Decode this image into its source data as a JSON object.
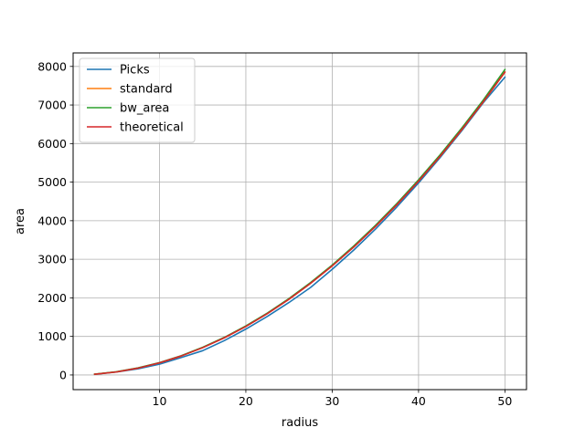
{
  "chart_data": {
    "type": "line",
    "title": "",
    "xlabel": "radius",
    "ylabel": "area",
    "xlim": [
      0,
      52.5
    ],
    "ylim": [
      -380,
      8350
    ],
    "xticks": [
      10,
      20,
      30,
      40,
      50
    ],
    "yticks": [
      0,
      1000,
      2000,
      3000,
      4000,
      5000,
      6000,
      7000,
      8000
    ],
    "grid": true,
    "legend_position": "top-left",
    "x": [
      2.5,
      5,
      7.5,
      10,
      12.5,
      15,
      17.5,
      20,
      22.5,
      25,
      27.5,
      30,
      32.5,
      35,
      37.5,
      40,
      42.5,
      45,
      47.5,
      50
    ],
    "series": [
      {
        "name": "Picks",
        "color": "#1f77b4",
        "values": [
          17,
          77,
          160,
          280,
          450,
          630,
          890,
          1190,
          1520,
          1880,
          2270,
          2740,
          3240,
          3780,
          4360,
          4980,
          5640,
          6330,
          7060,
          7720
        ]
      },
      {
        "name": "standard",
        "color": "#ff7f0e",
        "values": [
          20,
          80,
          178,
          315,
          491,
          710,
          964,
          1260,
          1595,
          1966,
          2378,
          2830,
          3320,
          3850,
          4417,
          5027,
          5672,
          6358,
          7085,
          7850
        ]
      },
      {
        "name": "bw_area",
        "color": "#2ca02c",
        "values": [
          22,
          84,
          183,
          321,
          498,
          718,
          974,
          1271,
          1607,
          1982,
          2396,
          2850,
          3344,
          3877,
          4449,
          5060,
          5710,
          6400,
          7130,
          7920
        ]
      },
      {
        "name": "theoretical",
        "color": "#d62728",
        "values": [
          19.6,
          78.5,
          176.7,
          314.2,
          490.9,
          706.9,
          962.1,
          1256.6,
          1590.4,
          1963.5,
          2375.8,
          2827.4,
          3318.3,
          3848.5,
          4417.9,
          5026.5,
          5674.5,
          6361.7,
          7088.2,
          7854
        ]
      }
    ]
  }
}
